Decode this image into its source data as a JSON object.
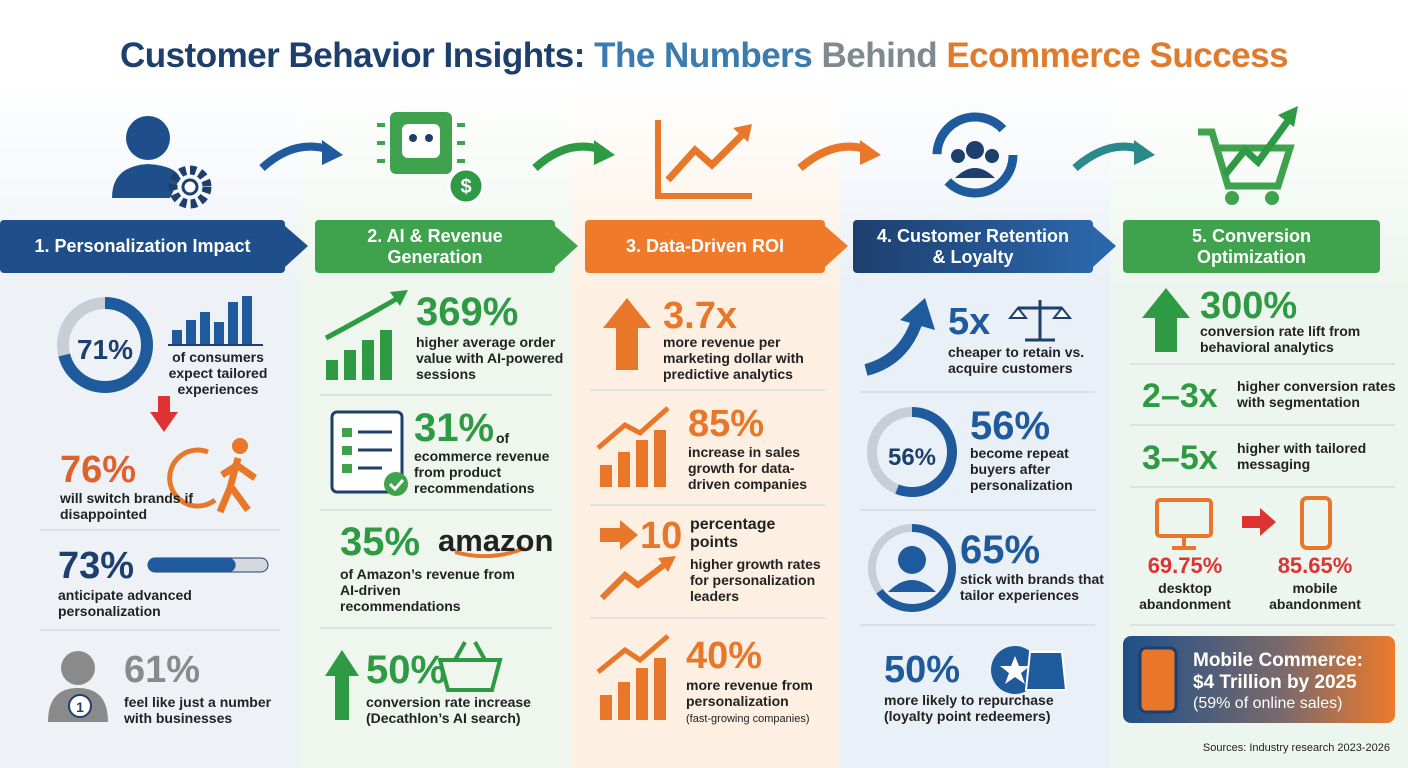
{
  "header": {
    "title_parts": [
      "Customer Behavior Insights:",
      "The Numbers",
      "Behind",
      "Ecommerce Success"
    ]
  },
  "columns": [
    {
      "heading": "1. Personalization Impact",
      "items": [
        {
          "stat": "71%",
          "text": "of consumers expect tailored experiences"
        },
        {
          "stat": "76%",
          "text": "will switch brands if disappointed"
        },
        {
          "stat": "73%",
          "text": "anticipate advanced personalization"
        },
        {
          "stat": "61%",
          "text": "feel like just a number with businesses"
        }
      ]
    },
    {
      "heading": "2. AI & Revenue Generation",
      "items": [
        {
          "stat": "369%",
          "text": "higher average order value with AI-powered sessions"
        },
        {
          "stat": "31%",
          "stat_suffix": "of",
          "text": "ecommerce revenue from product recommendations"
        },
        {
          "stat": "35%",
          "logo": "amazon",
          "text": "of Amazon’s revenue from AI-driven recommendations"
        },
        {
          "stat": "50%",
          "text": "conversion rate increase (Decathlon’s AI search)"
        }
      ]
    },
    {
      "heading": "3. Data-Driven ROI",
      "items": [
        {
          "stat": "3.7x",
          "text": "more revenue per marketing dollar with predictive analytics"
        },
        {
          "stat": "85%",
          "text": "increase in sales growth for data-driven companies"
        },
        {
          "stat": "10",
          "stat_suffix": "percentage points",
          "text": "higher growth rates for personalization leaders"
        },
        {
          "stat": "40%",
          "text": "more revenue from personalization",
          "note": "(fast-growing companies)"
        }
      ]
    },
    {
      "heading": "4. Customer Retention & Loyalty",
      "items": [
        {
          "stat": "5x",
          "text": "cheaper to retain vs. acquire customers"
        },
        {
          "stat": "56%",
          "text": "become repeat buyers after personalization"
        },
        {
          "stat": "65%",
          "text": "stick with brands that tailor experiences"
        },
        {
          "stat": "50%",
          "text": "more likely to repurchase (loyalty point redeemers)"
        }
      ]
    },
    {
      "heading": "5. Conversion Optimization",
      "items": [
        {
          "stat": "300%",
          "text": "conversion rate lift from behavioral analytics"
        },
        {
          "stat": "2–3x",
          "text": "higher conversion rates with segmentation"
        },
        {
          "stat": "3–5x",
          "text": "higher with tailored messaging"
        },
        {
          "stat": "69.75%",
          "text": "desktop abandonment"
        },
        {
          "stat": "85.65%",
          "text": "mobile abandonment"
        }
      ]
    }
  ],
  "footer": {
    "callout": {
      "title": "Mobile Commerce:",
      "value": "$4 Trillion by 2025",
      "note": "(59% of online sales)"
    },
    "source": "Sources: Industry research 2023-2026"
  }
}
